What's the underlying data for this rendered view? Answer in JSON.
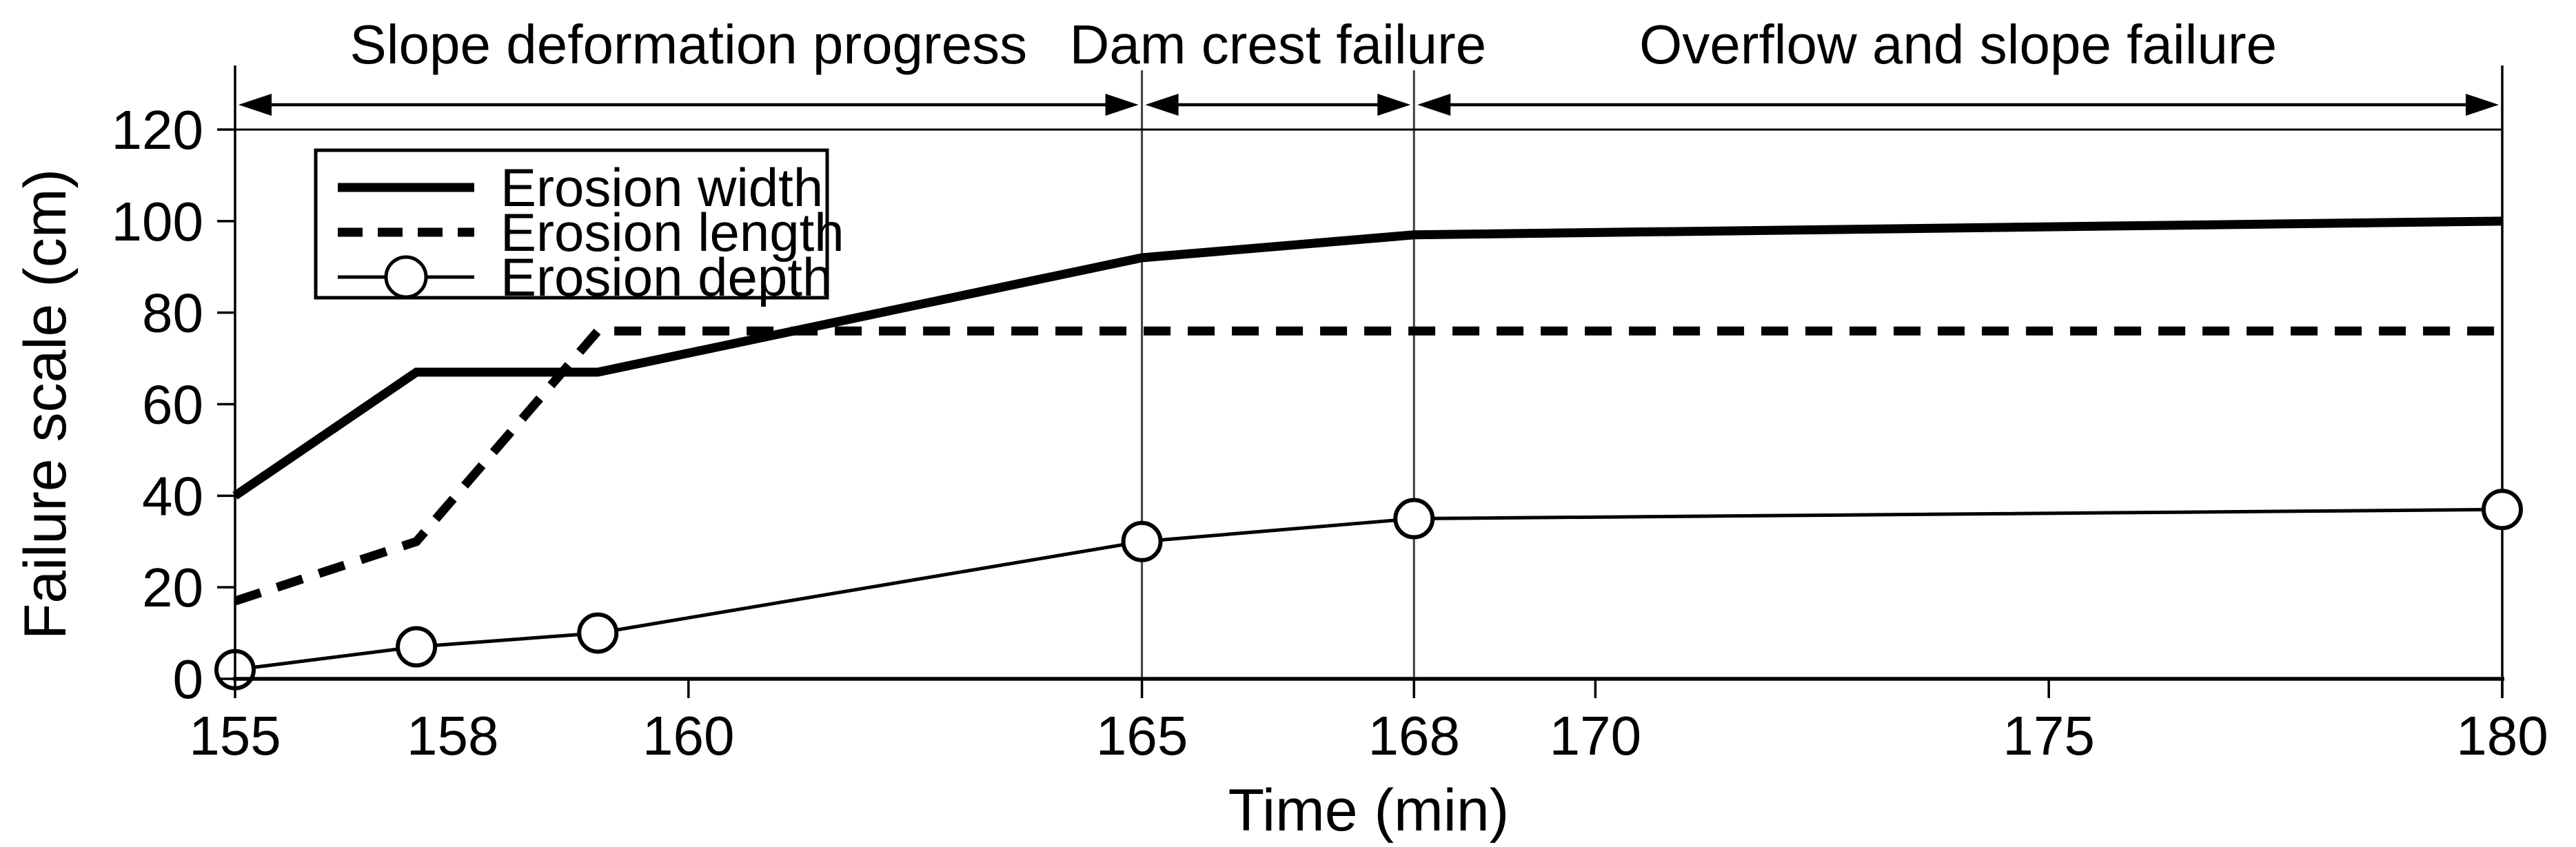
{
  "chart_data": {
    "type": "line",
    "x": [
      155,
      157,
      159,
      165,
      168,
      180
    ],
    "series": [
      {
        "name": "Erosion width",
        "values": [
          40,
          67,
          67,
          92,
          97,
          100
        ],
        "line": "thick-solid",
        "marker": "none"
      },
      {
        "name": "Erosion length",
        "values": [
          17,
          30,
          76,
          76,
          76,
          76
        ],
        "line": "thick-dashed",
        "marker": "none"
      },
      {
        "name": "Erosion depth",
        "values": [
          2,
          7,
          10,
          30,
          35,
          37
        ],
        "line": "thin-solid",
        "marker": "open-circle"
      }
    ],
    "title": "",
    "xlabel": "Time (min)",
    "ylabel": "Failure scale (cm)",
    "xlim": [
      155,
      180
    ],
    "ylim": [
      0,
      120
    ],
    "grid": false,
    "legend_position": "top-left-inside",
    "x_ticks": [
      {
        "label": "155",
        "t": 155,
        "mark": true
      },
      {
        "label": "158",
        "t": 157.4,
        "mark": false
      },
      {
        "label": "160",
        "t": 160,
        "mark": true
      },
      {
        "label": "165",
        "t": 165,
        "mark": true
      },
      {
        "label": "168",
        "t": 168,
        "mark": true
      },
      {
        "label": "170",
        "t": 170,
        "mark": true
      },
      {
        "label": "175",
        "t": 175,
        "mark": true
      },
      {
        "label": "180",
        "t": 180,
        "mark": true
      }
    ],
    "y_ticks": [
      0,
      20,
      40,
      60,
      80,
      100,
      120
    ],
    "event_lines": [
      165,
      168,
      180
    ],
    "phases": [
      {
        "label": "Slope deformation progress",
        "from": 155,
        "to": 165
      },
      {
        "label": "Dam crest failure",
        "from": 165,
        "to": 168
      },
      {
        "label": "Overflow and slope failure",
        "from": 168,
        "to": 180
      }
    ],
    "colors": {
      "ink": "#000000",
      "event_line": "#3f3f3f",
      "background": "#ffffff"
    }
  }
}
